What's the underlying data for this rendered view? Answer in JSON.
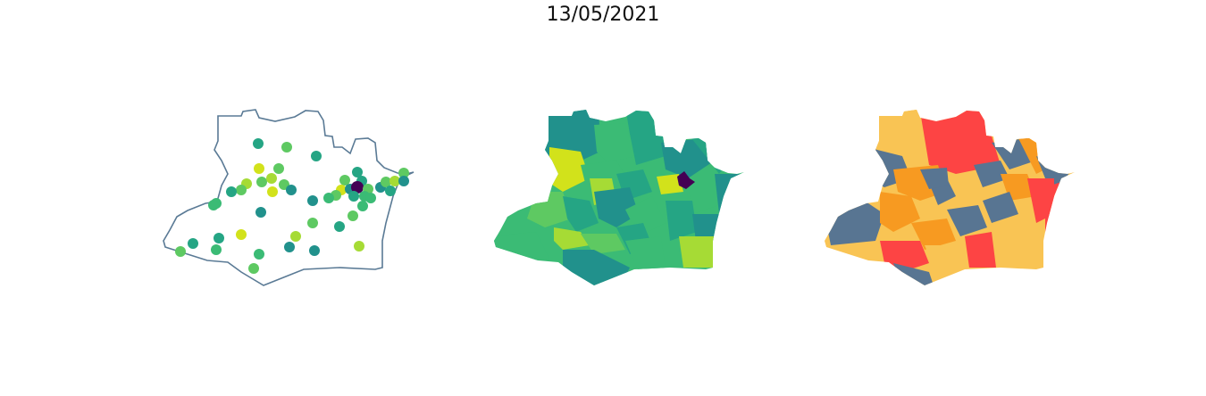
{
  "title": "13/05/2021",
  "colors": {
    "outline": "#5a7a95",
    "viridis_dark": "#440154",
    "viridis_teal": "#21918c",
    "viridis_mid_teal": "#25a584",
    "viridis_green": "#3bbb75",
    "viridis_light_green": "#5ec962",
    "viridis_lime": "#a6db35",
    "viridis_yellow": "#d2e21b",
    "risk_gray_blue": "#587592",
    "risk_yellow": "#f9c454",
    "risk_orange": "#f79a21",
    "risk_red": "#fd4444"
  },
  "panels": [
    {
      "name": "points-map"
    },
    {
      "name": "viridis-choropleth"
    },
    {
      "name": "risk-choropleth"
    }
  ]
}
